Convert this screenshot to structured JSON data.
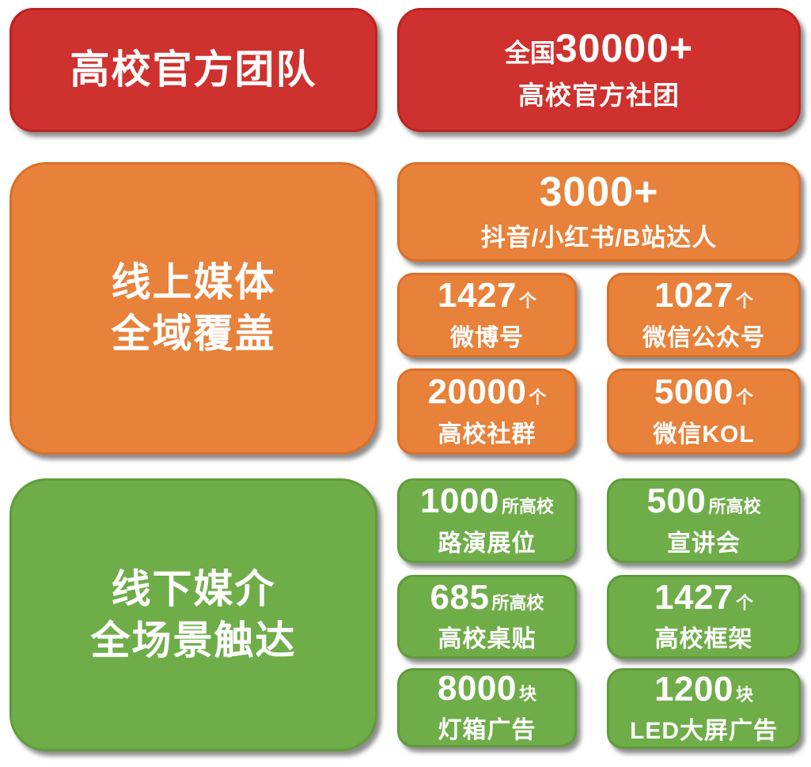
{
  "palette": {
    "red": "#ce312e",
    "orange": "#e8813a",
    "green": "#6fad49",
    "text": "#ffffff",
    "background": "#ffffff"
  },
  "official_team": {
    "headline": "高校官方团队",
    "stat": {
      "prefix": "全国",
      "value": "30000+",
      "label": "高校官方社团"
    }
  },
  "online_media": {
    "headline_line1": "线上媒体",
    "headline_line2": "全域覆盖",
    "featured": {
      "value": "3000+",
      "label": "抖音/小红书/B站达人"
    },
    "stats": [
      {
        "value": "1427",
        "unit": "个",
        "label": "微博号"
      },
      {
        "value": "1027",
        "unit": "个",
        "label": "微信公众号"
      },
      {
        "value": "20000",
        "unit": "个",
        "label": "高校社群"
      },
      {
        "value": "5000",
        "unit": "个",
        "label": "微信KOL"
      }
    ]
  },
  "offline_media": {
    "headline_line1": "线下媒介",
    "headline_line2": "全场景触达",
    "stats": [
      {
        "value": "1000",
        "unit": "所高校",
        "label": "路演展位"
      },
      {
        "value": "500",
        "unit": "所高校",
        "label": "宣讲会"
      },
      {
        "value": "685",
        "unit": "所高校",
        "label": "高校桌贴"
      },
      {
        "value": "1427",
        "unit": "个",
        "label": "高校框架"
      },
      {
        "value": "8000",
        "unit": "块",
        "label": "灯箱广告"
      },
      {
        "value": "1200",
        "unit": "块",
        "label": "LED大屏广告"
      }
    ]
  }
}
